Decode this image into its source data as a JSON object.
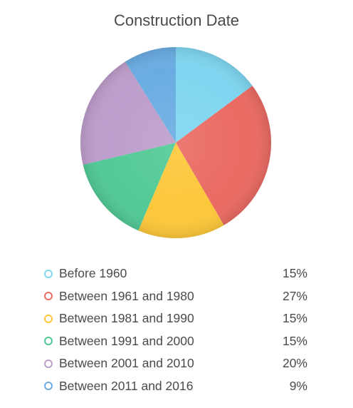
{
  "chart_data": {
    "type": "pie",
    "title": "Construction Date",
    "categories": [
      "Before 1960",
      "Between 1961 and 1980",
      "Between 1981 and 1990",
      "Between 1991 and 2000",
      "Between 2001 and 2010",
      "Between 2011 and 2016"
    ],
    "values": [
      15,
      27,
      15,
      15,
      20,
      9
    ],
    "value_labels": [
      "15%",
      "27%",
      "15%",
      "15%",
      "20%",
      "9%"
    ],
    "colors": [
      "#7fd5f0",
      "#ea6a63",
      "#fcc73a",
      "#52c996",
      "#bd9dcb",
      "#6aace2"
    ],
    "legend_placement": "bottom",
    "start_angle": "top",
    "direction": "clockwise"
  }
}
